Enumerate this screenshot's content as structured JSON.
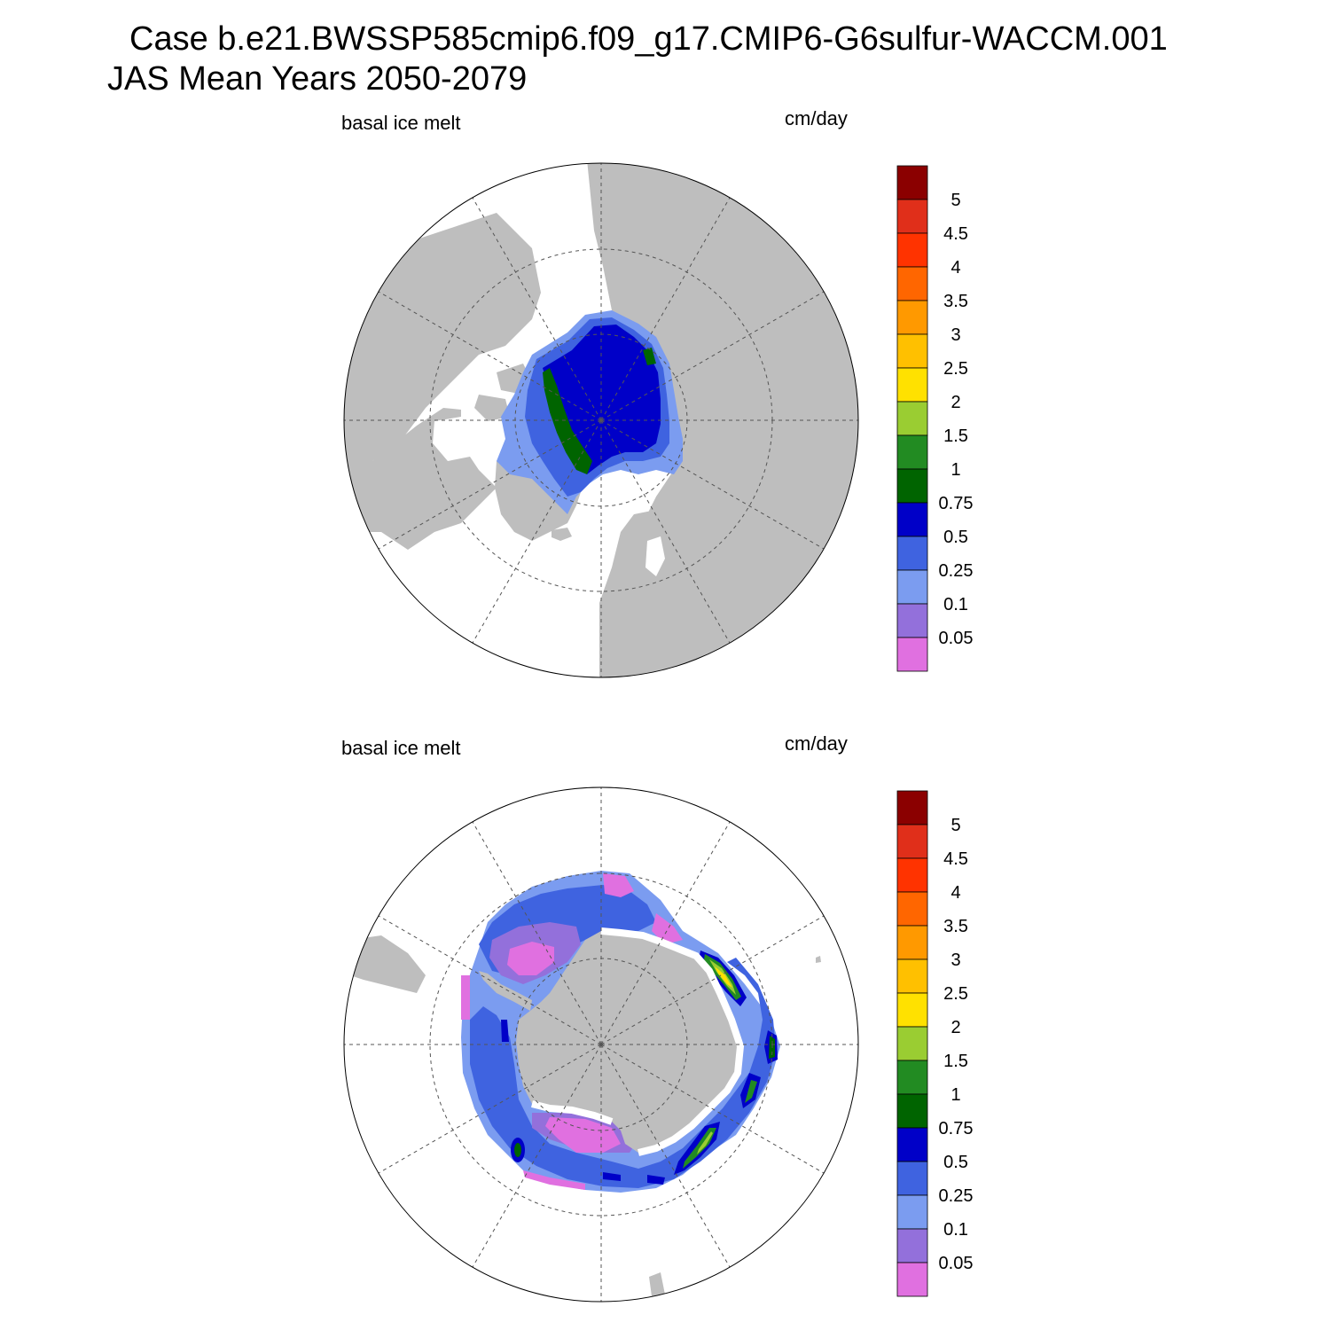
{
  "title_line1": "Case b.e21.BWSSP585cmip6.f09_g17.CMIP6-G6sulfur-WACCM.001",
  "title_line2": "JAS Mean   Years 2050-2079",
  "colors": {
    "land": "#bebebe",
    "ocean": "#ffffff",
    "grid": "#555555"
  },
  "colorbar": {
    "levels": [
      "0.05",
      "0.1",
      "0.25",
      "0.5",
      "0.75",
      "1",
      "1.5",
      "2",
      "2.5",
      "3",
      "3.5",
      "4",
      "4.5",
      "5"
    ],
    "colors": [
      "#e070e0",
      "#9370db",
      "#7b9cf0",
      "#3f63e0",
      "#0000c8",
      "#006400",
      "#228b22",
      "#9acd32",
      "#ffe100",
      "#ffc000",
      "#ff9900",
      "#ff6600",
      "#ff3300",
      "#e02f1a",
      "#8b0000"
    ]
  },
  "panels": [
    {
      "id": "nh",
      "hemisphere": "north",
      "variable_label": "basal ice melt",
      "units_label": "cm/day"
    },
    {
      "id": "sh",
      "hemisphere": "south",
      "variable_label": "basal ice melt",
      "units_label": "cm/day"
    }
  ]
}
